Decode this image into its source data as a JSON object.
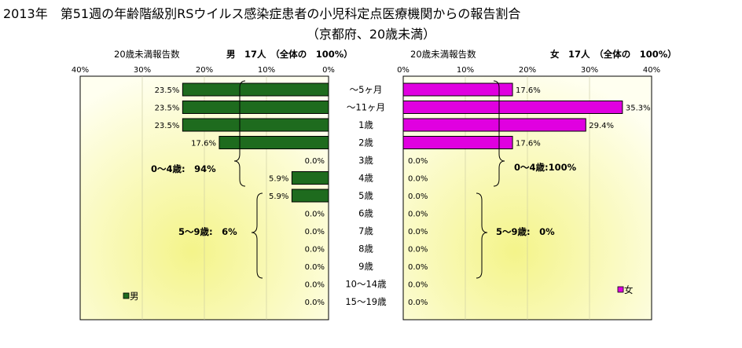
{
  "title": "2013年　第51週の年齢階級別RSウイルス感染症患者の小児科定点医療機関からの報告割合",
  "subtitle": "（京都府、20歳未満）",
  "colors": {
    "male": "#1e6b1e",
    "female": "#e000e0",
    "plot_bg": "#fffff0",
    "plot_glow": "#f4f48a"
  },
  "chart_data": [
    {
      "type": "bar",
      "orientation": "horizontal",
      "direction": "leftward",
      "axis_title": "20歳未満報告数",
      "header": "男　17人　（全体の　100%）",
      "xlim": [
        0,
        40
      ],
      "ticks": [
        "40%",
        "30%",
        "20%",
        "10%",
        "0%"
      ],
      "categories": [
        "～5ヶ月",
        "～11ヶ月",
        "1歳",
        "2歳",
        "3歳",
        "4歳",
        "5歳",
        "6歳",
        "7歳",
        "8歳",
        "9歳",
        "10～14歳",
        "15～19歳"
      ],
      "series": [
        {
          "name": "男",
          "values": [
            23.5,
            23.5,
            23.5,
            17.6,
            0,
            5.9,
            5.9,
            0,
            0,
            0,
            0,
            0,
            0
          ]
        }
      ],
      "value_labels": [
        "23.5%",
        "23.5%",
        "23.5%",
        "17.6%",
        "0.0%",
        "5.9%",
        "5.9%",
        "0.0%",
        "0.0%",
        "0.0%",
        "0.0%",
        "0.0%",
        "0.0%"
      ],
      "annotations": [
        "0～4歳:　94%",
        "5～9歳:　6%"
      ],
      "legend": "bottom-left"
    },
    {
      "type": "bar",
      "orientation": "horizontal",
      "direction": "rightward",
      "axis_title": "20歳未満報告数",
      "header": "女　17人　（全体の　100%）",
      "xlim": [
        0,
        40
      ],
      "ticks": [
        "0%",
        "10%",
        "20%",
        "30%",
        "40%"
      ],
      "categories": [
        "～5ヶ月",
        "～11ヶ月",
        "1歳",
        "2歳",
        "3歳",
        "4歳",
        "5歳",
        "6歳",
        "7歳",
        "8歳",
        "9歳",
        "10～14歳",
        "15～19歳"
      ],
      "series": [
        {
          "name": "女",
          "values": [
            17.6,
            35.3,
            29.4,
            17.6,
            0,
            0,
            0,
            0,
            0,
            0,
            0,
            0,
            0
          ]
        }
      ],
      "value_labels": [
        "17.6%",
        "35.3%",
        "29.4%",
        "17.6%",
        "0.0%",
        "0.0%",
        "0.0%",
        "0.0%",
        "0.0%",
        "0.0%",
        "0.0%",
        "0.0%",
        "0.0%"
      ],
      "annotations": [
        "0～4歳:100%",
        "5～9歳:　0%"
      ],
      "legend": "bottom-right"
    }
  ]
}
